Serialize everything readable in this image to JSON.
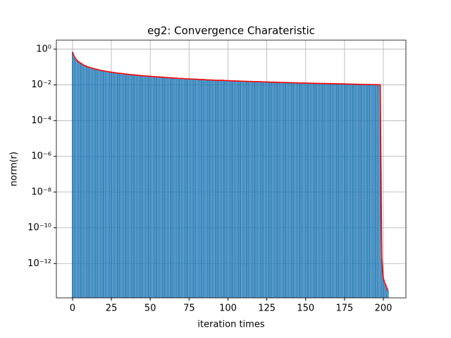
{
  "chart_data": {
    "type": "bar",
    "title": "eg2: Convergence Charateristic",
    "x_label": "iteration times",
    "y_label": "norm(r)",
    "x": [
      0,
      1,
      2,
      3,
      4,
      5,
      6,
      7,
      8,
      9,
      10,
      11,
      12,
      13,
      14,
      15,
      16,
      17,
      18,
      19,
      20,
      21,
      22,
      23,
      24,
      25,
      26,
      27,
      28,
      29,
      30,
      31,
      32,
      33,
      34,
      35,
      36,
      37,
      38,
      39,
      40,
      41,
      42,
      43,
      44,
      45,
      46,
      47,
      48,
      49,
      50,
      51,
      52,
      53,
      54,
      55,
      56,
      57,
      58,
      59,
      60,
      61,
      62,
      63,
      64,
      65,
      66,
      67,
      68,
      69,
      70,
      71,
      72,
      73,
      74,
      75,
      76,
      77,
      78,
      79,
      80,
      81,
      82,
      83,
      84,
      85,
      86,
      87,
      88,
      89,
      90,
      91,
      92,
      93,
      94,
      95,
      96,
      97,
      98,
      99,
      100,
      101,
      102,
      103,
      104,
      105,
      106,
      107,
      108,
      109,
      110,
      111,
      112,
      113,
      114,
      115,
      116,
      117,
      118,
      119,
      120,
      121,
      122,
      123,
      124,
      125,
      126,
      127,
      128,
      129,
      130,
      131,
      132,
      133,
      134,
      135,
      136,
      137,
      138,
      139,
      140,
      141,
      142,
      143,
      144,
      145,
      146,
      147,
      148,
      149,
      150,
      151,
      152,
      153,
      154,
      155,
      156,
      157,
      158,
      159,
      160,
      161,
      162,
      163,
      164,
      165,
      166,
      167,
      168,
      169,
      170,
      171,
      172,
      173,
      174,
      175,
      176,
      177,
      178,
      179,
      180,
      181,
      182,
      183,
      184,
      185,
      186,
      187,
      188,
      189,
      190,
      191,
      192,
      193,
      194,
      195,
      196,
      197,
      198,
      199,
      200,
      201,
      202,
      203
    ],
    "values": [
      0.7,
      0.4,
      0.29,
      0.23,
      0.19,
      0.17,
      0.15,
      0.13,
      0.12,
      0.11,
      0.1,
      0.096,
      0.09,
      0.085,
      0.08,
      0.076,
      0.073,
      0.069,
      0.066,
      0.064,
      0.061,
      0.059,
      0.057,
      0.055,
      0.053,
      0.052,
      0.05,
      0.049,
      0.047,
      0.046,
      0.045,
      0.044,
      0.043,
      0.042,
      0.041,
      0.04,
      0.039,
      0.038,
      0.037,
      0.037,
      0.036,
      0.035,
      0.035,
      0.034,
      0.033,
      0.033,
      0.032,
      0.032,
      0.031,
      0.031,
      0.03,
      0.03,
      0.029,
      0.029,
      0.028,
      0.028,
      0.028,
      0.027,
      0.027,
      0.026,
      0.026,
      0.026,
      0.025,
      0.025,
      0.025,
      0.024,
      0.024,
      0.024,
      0.023,
      0.023,
      0.023,
      0.023,
      0.022,
      0.022,
      0.022,
      0.022,
      0.021,
      0.021,
      0.021,
      0.021,
      0.021,
      0.02,
      0.02,
      0.02,
      0.02,
      0.02,
      0.019,
      0.019,
      0.019,
      0.019,
      0.019,
      0.018,
      0.018,
      0.018,
      0.018,
      0.018,
      0.018,
      0.018,
      0.0175,
      0.0175,
      0.0173,
      0.0172,
      0.017,
      0.0169,
      0.0168,
      0.0166,
      0.0165,
      0.0164,
      0.0162,
      0.0161,
      0.016,
      0.0159,
      0.0158,
      0.0157,
      0.0156,
      0.0155,
      0.0154,
      0.0153,
      0.0153,
      0.0152,
      0.0151,
      0.015,
      0.0149,
      0.0148,
      0.0147,
      0.0146,
      0.0145,
      0.0144,
      0.0143,
      0.0142,
      0.0141,
      0.014,
      0.014,
      0.0139,
      0.0138,
      0.0137,
      0.0136,
      0.0136,
      0.0135,
      0.0134,
      0.0133,
      0.0133,
      0.0132,
      0.0131,
      0.0131,
      0.013,
      0.0129,
      0.0129,
      0.0128,
      0.0127,
      0.0127,
      0.0126,
      0.0126,
      0.0125,
      0.0124,
      0.0124,
      0.0123,
      0.0123,
      0.0122,
      0.0121,
      0.0121,
      0.012,
      0.012,
      0.0119,
      0.0119,
      0.0118,
      0.0118,
      0.0117,
      0.0117,
      0.0116,
      0.0116,
      0.0115,
      0.0115,
      0.0114,
      0.0114,
      0.0113,
      0.0113,
      0.0112,
      0.0111,
      0.011,
      0.011,
      0.0109,
      0.0109,
      0.0108,
      0.0108,
      0.0107,
      0.0107,
      0.0106,
      0.0106,
      0.0106,
      0.0105,
      0.0105,
      0.0104,
      0.0104,
      0.0103,
      0.0103,
      0.0102,
      0.0102,
      0.0101,
      2e-12,
      1.5e-13,
      8e-14,
      5e-14,
      3e-14
    ],
    "bar_color": "#1f77b4",
    "line_color": "#ff0000",
    "xlim": [
      -10.4,
      214.5
    ],
    "xticks": [
      0,
      25,
      50,
      75,
      100,
      125,
      150,
      175,
      200
    ],
    "ylim": [
      1.2e-14,
      3.2
    ],
    "log_scale_y": true,
    "grid": true,
    "yticks": [
      {
        "value": 1,
        "label": "10⁰"
      },
      {
        "value": 0.01,
        "label": "10⁻²"
      },
      {
        "value": 0.0001,
        "label": "10⁻⁴"
      },
      {
        "value": 1e-06,
        "label": "10⁻⁶"
      },
      {
        "value": 1e-08,
        "label": "10⁻⁸"
      },
      {
        "value": 1e-10,
        "label": "10⁻¹⁰"
      },
      {
        "value": 1e-12,
        "label": "10⁻¹²"
      }
    ]
  }
}
